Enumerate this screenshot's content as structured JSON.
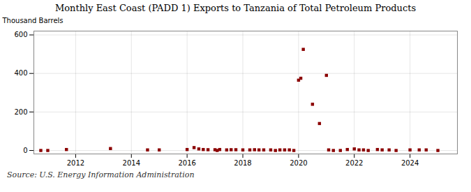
{
  "chart_data": {
    "type": "scatter",
    "title": "Monthly East Coast (PADD 1) Exports to Tanzania of Total Petroleum Products",
    "ylabel": "Thousand Barrels",
    "source": "Source: U.S. Energy Information Administration",
    "color": "#8b0000",
    "marker": "square",
    "grid": true,
    "xlim": [
      2010.5,
      2025.7
    ],
    "xticks": [
      2012,
      2014,
      2016,
      2018,
      2020,
      2022,
      2024
    ],
    "ylim": [
      -18,
      620
    ],
    "yticks": [
      0,
      200,
      400,
      600
    ],
    "x": [
      2010.75,
      2011.0,
      2011.67,
      2013.25,
      2014.58,
      2015.0,
      2016.0,
      2016.25,
      2016.42,
      2016.58,
      2016.75,
      2017.0,
      2017.08,
      2017.17,
      2017.42,
      2017.58,
      2017.75,
      2018.0,
      2018.25,
      2018.42,
      2018.58,
      2018.75,
      2019.0,
      2019.17,
      2019.33,
      2019.5,
      2019.67,
      2019.83,
      2020.0,
      2020.08,
      2020.17,
      2020.5,
      2020.75,
      2021.0,
      2021.08,
      2021.25,
      2021.5,
      2021.75,
      2022.0,
      2022.17,
      2022.33,
      2022.5,
      2022.83,
      2023.0,
      2023.25,
      2023.5,
      2024.0,
      2024.33,
      2024.58,
      2025.0
    ],
    "values": [
      0,
      0,
      5,
      10,
      3,
      3,
      5,
      15,
      8,
      5,
      4,
      4,
      0,
      5,
      3,
      4,
      4,
      3,
      3,
      4,
      3,
      3,
      3,
      0,
      3,
      3,
      3,
      0,
      365,
      375,
      525,
      240,
      140,
      390,
      3,
      0,
      0,
      5,
      8,
      3,
      3,
      0,
      5,
      3,
      3,
      0,
      3,
      3,
      3,
      0
    ]
  }
}
